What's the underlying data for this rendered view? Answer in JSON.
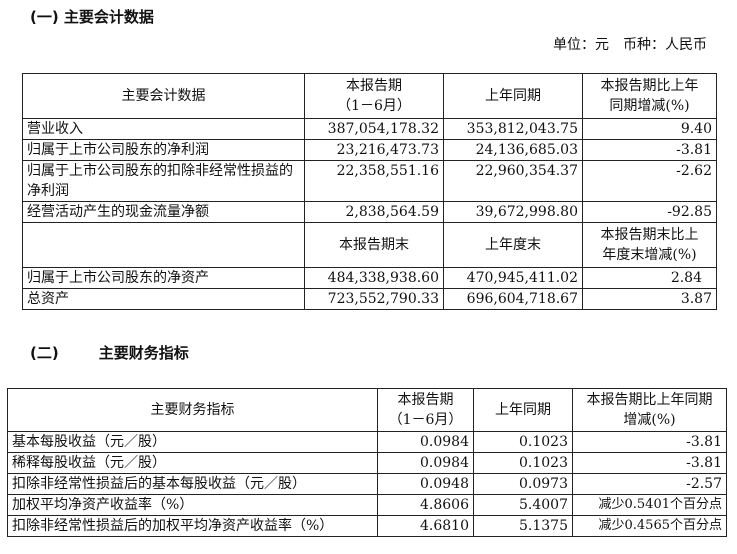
{
  "section1": {
    "title": "(一) 主要会计数据",
    "unit": "单位：元　币种：人民币",
    "header": [
      "主要会计数据",
      "本报告期",
      "（1－6月）",
      "上年同期",
      "本报告期比上年",
      "同期增减(%)"
    ],
    "rows": [
      {
        "label": "营业收入",
        "current": "387,054,178.32",
        "prior": "353,812,043.75",
        "change": "9.40"
      },
      {
        "label": "归属于上市公司股东的净利润",
        "current": "23,216,473.73",
        "prior": "24,136,685.03",
        "change": "-3.81"
      },
      {
        "label": "归属于上市公司股东的扣除非经常性损益的净利润",
        "current": "22,358,551.16",
        "prior": "22,960,354.37",
        "change": "-2.62"
      },
      {
        "label": "经营活动产生的现金流量净额",
        "current": "2,838,564.59",
        "prior": "39,672,998.80",
        "change": "-92.85"
      }
    ],
    "header2": [
      "本报告期末",
      "上年度末",
      "本报告期末比上",
      "年度末增减(%)"
    ],
    "rows2": [
      {
        "label": "归属于上市公司股东的净资产",
        "current": "484,338,938.60",
        "prior": "470,945,411.02",
        "change": "2.84"
      },
      {
        "label": "总资产",
        "current": "723,552,790.33",
        "prior": "696,604,718.67",
        "change": "3.87"
      }
    ]
  },
  "section2": {
    "title_num": "(二)",
    "title": "主要财务指标",
    "header": [
      "主要财务指标",
      "本报告期",
      "（1－6月）",
      "上年同期",
      "本报告期比上年同期",
      "增减(%)"
    ],
    "rows": [
      {
        "label": "基本每股收益（元／股）",
        "current": "0.0984",
        "prior": "0.1023",
        "change": "-3.81"
      },
      {
        "label": "稀释每股收益（元／股）",
        "current": "0.0984",
        "prior": "0.1023",
        "change": "-3.81"
      },
      {
        "label": "扣除非经常性损益后的基本每股收益（元／股）",
        "current": "0.0948",
        "prior": "0.0973",
        "change": "-2.57"
      },
      {
        "label": "加权平均净资产收益率（%）",
        "current": "4.8606",
        "prior": "5.4007",
        "change": "减少0.5401个百分点"
      },
      {
        "label": "扣除非经常性损益后的加权平均净资产收益率（%）",
        "current": "4.6810",
        "prior": "5.1375",
        "change": "减少0.4565个百分点"
      }
    ]
  }
}
